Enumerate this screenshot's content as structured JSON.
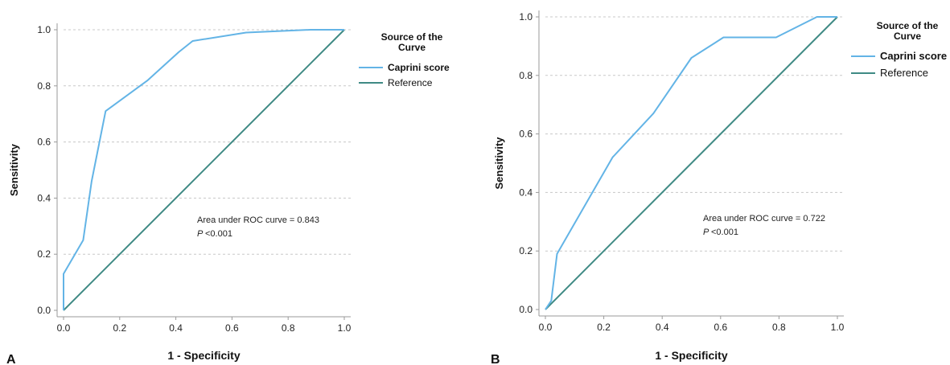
{
  "chart_data": [
    {
      "type": "line",
      "panel_label": "A",
      "xlabel": "1 - Specificity",
      "ylabel": "Sensitivity",
      "xlim": [
        0,
        1
      ],
      "ylim": [
        0,
        1
      ],
      "xticks": [
        "0.0",
        "0.2",
        "0.4",
        "0.6",
        "0.8",
        "1.0"
      ],
      "yticks": [
        "0.0",
        "0.2",
        "0.4",
        "0.6",
        "0.8",
        "1.0"
      ],
      "grid": "horizontal-dashed",
      "legend": {
        "title": "Source of the Curve",
        "placement": "right",
        "entries": [
          "Caprini score",
          "Reference"
        ]
      },
      "series": [
        {
          "name": "Caprini score",
          "color": "#63b4e6",
          "x": [
            0,
            0,
            0.07,
            0.1,
            0.15,
            0.3,
            0.41,
            0.46,
            0.65,
            0.88,
            1.0
          ],
          "y": [
            0,
            0.13,
            0.25,
            0.46,
            0.71,
            0.82,
            0.92,
            0.96,
            0.99,
            1.0,
            1.0
          ]
        },
        {
          "name": "Reference",
          "color": "#3f8a84",
          "x": [
            0,
            1
          ],
          "y": [
            0,
            1
          ]
        }
      ],
      "annotations": [
        "Area under ROC curve = 0.843",
        "<0.001"
      ],
      "annotation_p": "P"
    },
    {
      "type": "line",
      "panel_label": "B",
      "xlabel": "1 - Specificity",
      "ylabel": "Sensitivity",
      "xlim": [
        0,
        1
      ],
      "ylim": [
        0,
        1
      ],
      "xticks": [
        "0.0",
        "0.2",
        "0.4",
        "0.6",
        "0.8",
        "1.0"
      ],
      "yticks": [
        "0.0",
        "0.2",
        "0.4",
        "0.6",
        "0.8",
        "1.0"
      ],
      "grid": "horizontal-dashed",
      "legend": {
        "title": "Source of the Curve",
        "placement": "right",
        "entries": [
          "Caprini score",
          "Reference"
        ]
      },
      "series": [
        {
          "name": "Caprini score",
          "color": "#63b4e6",
          "x": [
            0,
            0.02,
            0.04,
            0.23,
            0.37,
            0.5,
            0.61,
            0.79,
            0.93,
            1.0
          ],
          "y": [
            0,
            0.03,
            0.19,
            0.52,
            0.67,
            0.86,
            0.93,
            0.93,
            1.0,
            1.0
          ]
        },
        {
          "name": "Reference",
          "color": "#3f8a84",
          "x": [
            0,
            1
          ],
          "y": [
            0,
            1
          ]
        }
      ],
      "annotations": [
        "Area under ROC curve = 0.722",
        "<0.001"
      ],
      "annotation_p": "P"
    }
  ]
}
